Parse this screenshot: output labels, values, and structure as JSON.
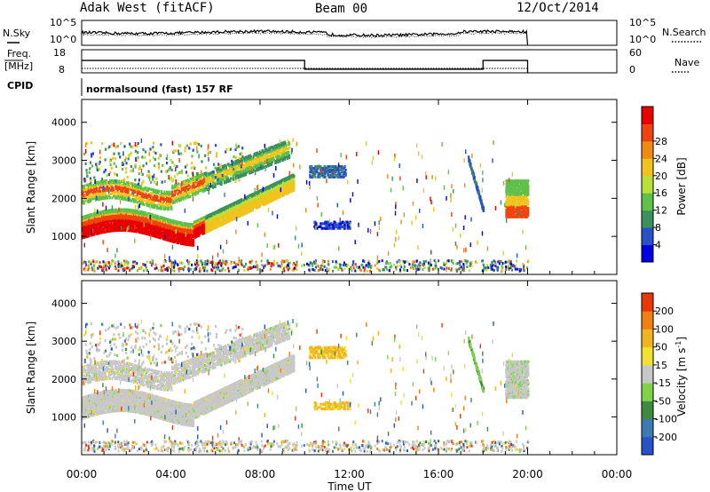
{
  "header": {
    "station": "Adak West (fitACF)",
    "beam": "Beam 00",
    "date": "12/Oct/2014"
  },
  "top_panels": {
    "nsky": {
      "label": "N.Sky",
      "tick_top": "10^5",
      "tick_bottom": "10^0",
      "right_label": "N.Search",
      "right_tick_top": "10^5",
      "right_tick_bottom": "10^0"
    },
    "freq": {
      "label": "Freq.",
      "unit": "[MHz]",
      "tick_top": "18",
      "tick_bottom": "8",
      "right_label": "Nave",
      "right_tick_top": "60",
      "right_tick_bottom": "0",
      "steps": [
        {
          "from_h": 0.0,
          "to_h": 10.0,
          "mhz": 14.9
        },
        {
          "from_h": 10.0,
          "to_h": 18.0,
          "mhz": 11.1
        },
        {
          "from_h": 18.0,
          "to_h": 20.0,
          "mhz": 14.9
        }
      ]
    },
    "cpid": {
      "label": "CPID",
      "text": "normalsound (fast) 157 RF"
    }
  },
  "chart_data": [
    {
      "type": "heatmap",
      "name": "power",
      "ylabel": "Slant Range [km]",
      "yticks": [
        1000,
        2000,
        3000,
        4000
      ],
      "ylim": [
        0,
        4600
      ],
      "xlim_hours": [
        0,
        24
      ],
      "colorbar": {
        "label": "Power [dB]",
        "ticks": [
          "4",
          "8",
          "12",
          "16",
          "20",
          "24",
          "28"
        ],
        "colors": [
          "#0000e0",
          "#2850c8",
          "#3d8f5e",
          "#5fc04a",
          "#b8e03a",
          "#f0c41c",
          "#f08a10",
          "#f04410",
          "#e60000"
        ]
      },
      "features": [
        {
          "desc": "strong band",
          "start_h": 0.0,
          "end_h": 9.5,
          "range_km": [
            1050,
            2300
          ]
        },
        {
          "desc": "upper band",
          "start_h": 0.0,
          "end_h": 9.5,
          "range_km": [
            1800,
            3400
          ]
        },
        {
          "desc": "patch",
          "start_h": 10.2,
          "end_h": 11.8,
          "range_km": [
            2600,
            2900
          ]
        },
        {
          "desc": "patch",
          "start_h": 10.4,
          "end_h": 11.9,
          "range_km": [
            1250,
            1450
          ]
        },
        {
          "desc": "streak",
          "start_h": 17.3,
          "end_h": 18.0,
          "range_km": [
            1700,
            3100
          ]
        },
        {
          "desc": "strong patch",
          "start_h": 19.0,
          "end_h": 20.0,
          "range_km": [
            1600,
            2500
          ]
        },
        {
          "desc": "near range",
          "start_h": 0.0,
          "end_h": 20.0,
          "range_km": [
            150,
            350
          ]
        }
      ]
    },
    {
      "type": "heatmap",
      "name": "velocity",
      "ylabel": "Slant Range [km]",
      "yticks": [
        1000,
        2000,
        3000,
        4000
      ],
      "ylim": [
        0,
        4600
      ],
      "xlim_hours": [
        0,
        24
      ],
      "colorbar": {
        "label": "Velocity [m s",
        "label_sup": "-1",
        "label_end": "]",
        "ticks": [
          "200",
          "100",
          "50",
          "15",
          "-15",
          "-50",
          "-100",
          "-200"
        ],
        "colors": [
          "#2850c8",
          "#3a7ab0",
          "#3f8a3e",
          "#7ed448",
          "#c8c8c8",
          "#f0e030",
          "#f0b420",
          "#f08010",
          "#e83808"
        ]
      }
    }
  ],
  "xaxis": {
    "label": "Time UT",
    "ticks": [
      "00:00",
      "04:00",
      "08:00",
      "12:00",
      "16:00",
      "20:00",
      "00:00"
    ]
  }
}
